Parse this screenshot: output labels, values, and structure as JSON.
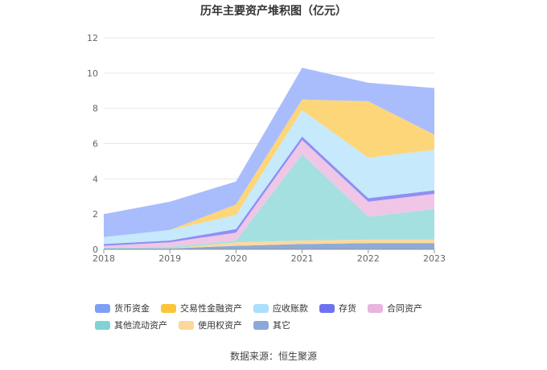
{
  "source_text": "数据来源：恒生聚源",
  "chart_data": {
    "type": "area",
    "stacked": true,
    "title": "历年主要资产堆积图（亿元）",
    "xlabel": "",
    "ylabel": "",
    "categories": [
      "2018",
      "2019",
      "2020",
      "2021",
      "2022",
      "2023"
    ],
    "ylim": [
      0,
      12
    ],
    "yticks": [
      0,
      2,
      4,
      6,
      8,
      10,
      12
    ],
    "grid": true,
    "legend_position": "bottom",
    "series": [
      {
        "name": "其它",
        "color": "#8eaad6",
        "values": [
          0.05,
          0.05,
          0.2,
          0.3,
          0.35,
          0.35
        ]
      },
      {
        "name": "使用权资产",
        "color": "#fcd9a0",
        "values": [
          0.0,
          0.0,
          0.2,
          0.2,
          0.2,
          0.2
        ]
      },
      {
        "name": "其他流动资产",
        "color": "#a5e0e0",
        "values": [
          0.05,
          0.1,
          0.1,
          4.9,
          1.3,
          1.75
        ]
      },
      {
        "name": "合同资产",
        "color": "#f0c6e6",
        "values": [
          0.1,
          0.25,
          0.45,
          0.8,
          0.85,
          0.85
        ]
      },
      {
        "name": "存货",
        "color": "#8f8ff5",
        "values": [
          0.1,
          0.1,
          0.2,
          0.2,
          0.2,
          0.2
        ]
      },
      {
        "name": "应收账款",
        "color": "#c6e9fb",
        "values": [
          0.4,
          0.6,
          0.8,
          1.5,
          2.3,
          2.3
        ]
      },
      {
        "name": "交易性金融资产",
        "color": "#fdd67a",
        "values": [
          0.0,
          0.0,
          0.6,
          0.6,
          3.2,
          0.85
        ]
      },
      {
        "name": "货币资金",
        "color": "#a9bdfd",
        "values": [
          1.3,
          1.6,
          1.3,
          1.8,
          1.05,
          2.65
        ]
      }
    ],
    "legend": [
      {
        "name": "货币资金",
        "color": "#7f9ef7"
      },
      {
        "name": "交易性金融资产",
        "color": "#fcc53a"
      },
      {
        "name": "应收账款",
        "color": "#abdffa"
      },
      {
        "name": "存货",
        "color": "#6f72f0"
      },
      {
        "name": "合同资产",
        "color": "#e9b4de"
      },
      {
        "name": "其他流动资产",
        "color": "#7fd3d3"
      },
      {
        "name": "使用权资产",
        "color": "#fcd79c"
      },
      {
        "name": "其它",
        "color": "#8ba9d8"
      }
    ]
  }
}
